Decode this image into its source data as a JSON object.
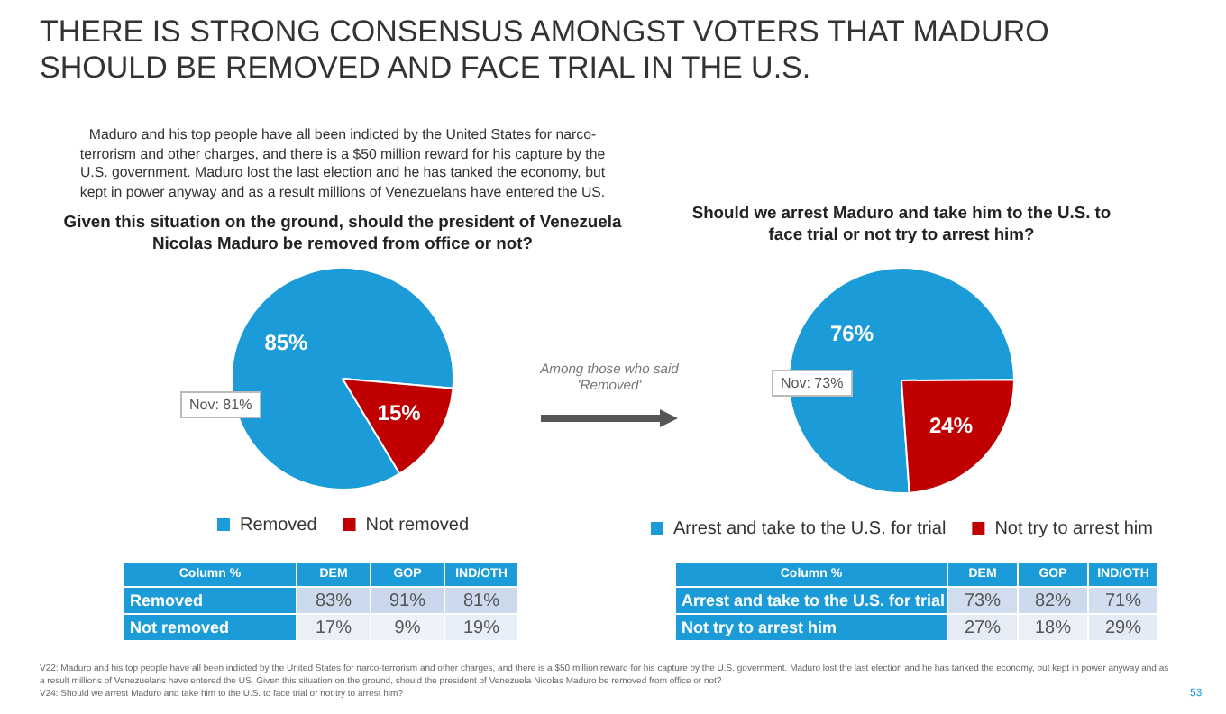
{
  "chart_data": [
    {
      "type": "pie",
      "title": "THERE IS STRONG CONSENSUS AMONGST VOTERS THAT MADURO SHOULD BE REMOVED AND FACE TRIAL IN THE U.S.",
      "subtitle": "Given this situation on the ground, should the president of Venezuela Nicolas Maduro be removed from office or not?",
      "categories": [
        "Removed",
        "Not removed"
      ],
      "values": [
        85,
        15
      ],
      "colors": [
        "#1b9bd7",
        "#c00000"
      ],
      "value_labels": [
        "85%",
        "15%"
      ],
      "legend": "bottom",
      "annotations": [
        "Maduro and his top people have all been indicted by the United States for narco-terrorism and other charges, and there is a $50 million reward for his capture by the U.S. government. Maduro lost the last election and he has tanked the economy, but kept in power anyway and as a result millions of Venezuelans have entered the US.",
        "Nov: 81%",
        "Among those who said 'Removed'",
        "V22: Maduro and his top people have all been indicted by the United States for narco-terrorism and other charges, and there is a $50 million reward for his capture by the U.S. government. Maduro lost the last election and he has tanked the economy, but kept in power anyway and as a result millions of Venezuelans have entered the US. Given this situation on the ground, should  the president of Venezuela Nicolas Maduro be removed from office or not?",
        "V24: Should we arrest Maduro and take him to the U.S. to face trial or not try to arrest him?",
        "53"
      ]
    },
    {
      "type": "heatmap",
      "title": "Column %",
      "categories": [
        "DEM",
        "GOP",
        "IND/OTH"
      ],
      "y_categories": [
        "Removed",
        "Not removed"
      ],
      "cells": [
        [
          83,
          91,
          81
        ],
        [
          17,
          9,
          19
        ]
      ],
      "cell_labels": [
        [
          "83%",
          "91%",
          "81%"
        ],
        [
          "17%",
          "9%",
          "19%"
        ]
      ]
    },
    {
      "type": "pie",
      "title": "Should we arrest Maduro and take him to the U.S. to face trial or not try to arrest him?",
      "categories": [
        "Arrest and take to the U.S. for trial",
        "Not try to arrest him"
      ],
      "values": [
        76,
        24
      ],
      "colors": [
        "#1b9bd7",
        "#c00000"
      ],
      "value_labels": [
        "76%",
        "24%"
      ],
      "legend": "bottom",
      "annotations": [
        "Nov: 73%"
      ]
    },
    {
      "type": "heatmap",
      "title": "Column %",
      "categories": [
        "DEM",
        "GOP",
        "IND/OTH"
      ],
      "y_categories": [
        "Arrest and take to the U.S. for trial",
        "Not try to arrest him"
      ],
      "cells": [
        [
          73,
          82,
          71
        ],
        [
          27,
          18,
          29
        ]
      ],
      "cell_labels": [
        [
          "73%",
          "82%",
          "71%"
        ],
        [
          "27%",
          "18%",
          "29%"
        ]
      ]
    }
  ]
}
